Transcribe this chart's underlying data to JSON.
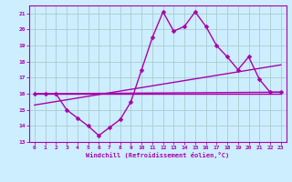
{
  "xlabel": "Windchill (Refroidissement éolien,°C)",
  "xlim": [
    -0.5,
    23.5
  ],
  "ylim": [
    13,
    21.5
  ],
  "yticks": [
    13,
    14,
    15,
    16,
    17,
    18,
    19,
    20,
    21
  ],
  "xticks": [
    0,
    1,
    2,
    3,
    4,
    5,
    6,
    7,
    8,
    9,
    10,
    11,
    12,
    13,
    14,
    15,
    16,
    17,
    18,
    19,
    20,
    21,
    22,
    23
  ],
  "bg_color": "#cceeff",
  "grid_color": "#aacccc",
  "line_color": "#aa00aa",
  "line_width": 1.0,
  "marker": "D",
  "marker_size": 2.5,
  "series": [
    {
      "x": [
        0,
        1,
        2,
        3,
        4,
        5,
        6,
        7,
        8,
        9,
        10,
        11,
        12,
        13,
        14,
        15,
        16,
        17,
        18,
        19,
        20,
        21,
        22,
        23
      ],
      "y": [
        16.0,
        16.0,
        16.0,
        15.0,
        14.5,
        14.0,
        13.4,
        13.9,
        14.4,
        15.5,
        17.5,
        19.5,
        21.1,
        19.9,
        20.2,
        21.1,
        20.2,
        19.0,
        18.3,
        17.5,
        18.3,
        16.9,
        16.1,
        16.1
      ],
      "has_markers": true
    },
    {
      "x": [
        0,
        23
      ],
      "y": [
        16.0,
        16.0
      ],
      "has_markers": false
    },
    {
      "x": [
        0,
        23
      ],
      "y": [
        16.0,
        16.1
      ],
      "has_markers": false
    },
    {
      "x": [
        0,
        23
      ],
      "y": [
        15.3,
        17.8
      ],
      "has_markers": false
    }
  ]
}
